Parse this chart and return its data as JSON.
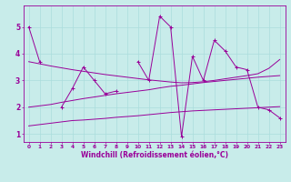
{
  "x": [
    0,
    1,
    2,
    3,
    4,
    5,
    6,
    7,
    8,
    9,
    10,
    11,
    12,
    13,
    14,
    15,
    16,
    17,
    18,
    19,
    20,
    21,
    22,
    23
  ],
  "series1": [
    5.0,
    3.7,
    null,
    2.0,
    2.7,
    3.5,
    3.0,
    2.5,
    2.6,
    null,
    3.7,
    3.0,
    5.4,
    5.0,
    0.9,
    3.9,
    3.0,
    4.5,
    4.1,
    3.5,
    3.4,
    2.0,
    1.9,
    1.6
  ],
  "series2_low": [
    1.3,
    1.35,
    1.4,
    1.45,
    1.5,
    1.52,
    1.55,
    1.58,
    1.62,
    1.65,
    1.68,
    1.72,
    1.76,
    1.8,
    1.83,
    1.86,
    1.88,
    1.9,
    1.92,
    1.94,
    1.96,
    1.98,
    2.0,
    2.02
  ],
  "series3_mid": [
    2.0,
    2.05,
    2.1,
    2.18,
    2.25,
    2.32,
    2.38,
    2.44,
    2.5,
    2.55,
    2.6,
    2.65,
    2.72,
    2.78,
    2.82,
    2.87,
    2.92,
    2.96,
    3.0,
    3.04,
    3.08,
    3.12,
    3.15,
    3.18
  ],
  "series4_high": [
    3.7,
    3.62,
    3.54,
    3.47,
    3.4,
    3.34,
    3.28,
    3.22,
    3.17,
    3.12,
    3.07,
    3.02,
    2.98,
    2.94,
    2.91,
    2.92,
    2.95,
    3.0,
    3.06,
    3.12,
    3.18,
    3.25,
    3.45,
    3.78
  ],
  "bg_color": "#c8ecea",
  "line_color": "#990099",
  "grid_color": "#aadddd",
  "xlabel": "Windchill (Refroidissement éolien,°C)",
  "ylim": [
    0.7,
    5.8
  ],
  "xlim": [
    -0.5,
    23.5
  ],
  "yticks": [
    1,
    2,
    3,
    4,
    5
  ],
  "xticks": [
    0,
    1,
    2,
    3,
    4,
    5,
    6,
    7,
    8,
    9,
    10,
    11,
    12,
    13,
    14,
    15,
    16,
    17,
    18,
    19,
    20,
    21,
    22,
    23
  ]
}
